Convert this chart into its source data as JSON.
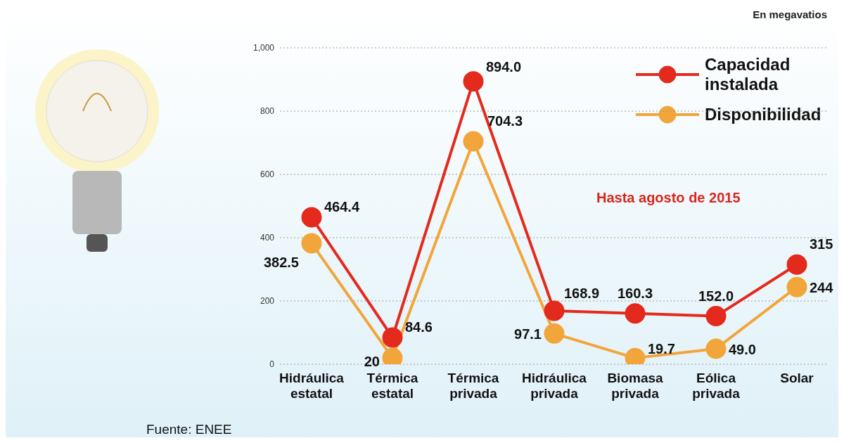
{
  "chart_data": {
    "type": "line",
    "categories": [
      "Hidráulica estatal",
      "Térmica estatal",
      "Térmica privada",
      "Hidráulica privada",
      "Biomasa privada",
      "Eólica privada",
      "Solar"
    ],
    "series": [
      {
        "name": "Capacidad instalada",
        "color": "#e32a1c",
        "values": [
          464.4,
          84.6,
          894.0,
          168.9,
          160.3,
          152.0,
          315
        ],
        "value_labels": [
          "464.4",
          "84.6",
          "894.0",
          "168.9",
          "160.3",
          "152.0",
          "315"
        ]
      },
      {
        "name": "Disponibilidad",
        "color": "#f2a53a",
        "values": [
          382.5,
          20,
          704.3,
          97.1,
          19.7,
          49.0,
          244
        ],
        "value_labels": [
          "382.5",
          "20",
          "704.3",
          "97.1",
          "19.7",
          "49.0",
          "244"
        ]
      }
    ],
    "ylim": [
      0,
      1000
    ],
    "yticks": [
      0,
      200,
      400,
      600,
      800,
      {
        "value": 1000,
        "label": "1,000"
      }
    ],
    "grid": "y",
    "legend": "top right",
    "marker": "circle",
    "line_style": "solid",
    "annotations": [
      "En megavatios",
      "Hasta agosto de 2015",
      "Fuente: ENEE"
    ]
  }
}
